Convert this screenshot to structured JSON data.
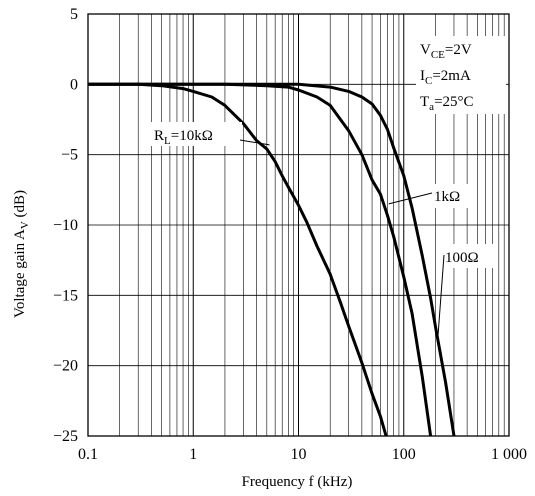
{
  "chart_data": {
    "type": "line",
    "xlabel": "Frequency f (kHz)",
    "ylabel_main": "Voltage gain A",
    "ylabel_sub": "V",
    "ylabel_tail": " (dB)",
    "x_scale": "log",
    "xlim": [
      0.1,
      1000
    ],
    "ylim": [
      -25,
      5
    ],
    "grid": true,
    "x_ticks": [
      0.1,
      1,
      10,
      100,
      1000
    ],
    "x_tick_labels": [
      "0.1",
      "1",
      "10",
      "100",
      "1 000"
    ],
    "y_ticks": [
      5,
      0,
      -5,
      -10,
      -15,
      -20,
      -25
    ],
    "y_tick_labels": [
      "5",
      "0",
      "−5",
      "−10",
      "−15",
      "−20",
      "−25"
    ],
    "conditions": [
      {
        "main": "V",
        "sub": "CE",
        "tail": "=2V"
      },
      {
        "main": "I",
        "sub": "C",
        "tail": "=2mA"
      },
      {
        "main": "T",
        "sub": "a",
        "tail": "=25°C"
      }
    ],
    "series": [
      {
        "name": "R_L=10kΩ",
        "label_main": "R",
        "label_sub": "L",
        "label_tail": "=10kΩ",
        "x": [
          0.1,
          0.3,
          0.5,
          0.8,
          1.0,
          1.5,
          2.0,
          3.0,
          4.0,
          5.0,
          6.0,
          7.0,
          8.0,
          10,
          12,
          15,
          20,
          25,
          30,
          40,
          50,
          60,
          68
        ],
        "y": [
          0,
          0,
          -0.1,
          -0.3,
          -0.5,
          -0.9,
          -1.5,
          -2.8,
          -4.0,
          -4.6,
          -5.5,
          -6.5,
          -7.3,
          -8.6,
          -9.8,
          -11.5,
          -13.5,
          -15.5,
          -17.2,
          -19.8,
          -22.0,
          -23.6,
          -25
        ]
      },
      {
        "name": "1kΩ",
        "label_main": "1kΩ",
        "label_sub": "",
        "label_tail": "",
        "x": [
          0.1,
          1,
          2,
          5,
          8,
          10,
          15,
          20,
          30,
          40,
          50,
          60,
          70,
          80,
          100,
          120,
          150,
          180
        ],
        "y": [
          0,
          0,
          0,
          -0.1,
          -0.2,
          -0.4,
          -0.9,
          -1.5,
          -3.3,
          -5.0,
          -6.8,
          -7.8,
          -9.3,
          -10.8,
          -13.7,
          -16.3,
          -20.8,
          -25
        ]
      },
      {
        "name": "100Ω",
        "label_main": "100Ω",
        "label_sub": "",
        "label_tail": "",
        "x": [
          0.1,
          1,
          10,
          20,
          30,
          40,
          50,
          60,
          70,
          80,
          100,
          120,
          150,
          180,
          200,
          250,
          300
        ],
        "y": [
          0,
          0,
          0,
          -0.2,
          -0.5,
          -0.9,
          -1.4,
          -2.2,
          -3.2,
          -4.5,
          -6.5,
          -8.8,
          -12.2,
          -15.2,
          -17.2,
          -21.2,
          -25
        ]
      }
    ]
  }
}
